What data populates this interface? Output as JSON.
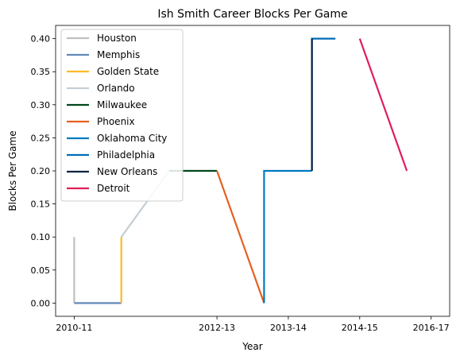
{
  "chart_data": {
    "type": "line",
    "title": "Ish Smith Career Blocks Per Game",
    "xlabel": "Year",
    "ylabel": "Blocks Per Game",
    "x_ticks": [
      {
        "pos": 0,
        "label": "2010-11"
      },
      {
        "pos": 2,
        "label": "2012-13"
      },
      {
        "pos": 3,
        "label": "2013-14"
      },
      {
        "pos": 4,
        "label": "2014-15"
      },
      {
        "pos": 5,
        "label": "2016-17"
      }
    ],
    "xlim": [
      -0.26,
      5.26
    ],
    "ylim": [
      -0.02,
      0.42
    ],
    "y_ticks": [
      "0.00",
      "0.05",
      "0.10",
      "0.15",
      "0.20",
      "0.25",
      "0.30",
      "0.35",
      "0.40"
    ],
    "y_tick_values": [
      0,
      0.05,
      0.1,
      0.15,
      0.2,
      0.25,
      0.3,
      0.35,
      0.4
    ],
    "grid": false,
    "legend_position": "upper-left",
    "series": [
      {
        "name": "Houston",
        "color": "#bfbfbf",
        "points": [
          [
            0,
            0.1
          ],
          [
            0,
            0.0
          ]
        ]
      },
      {
        "name": "Memphis",
        "color": "#6189b9",
        "points": [
          [
            0,
            0.0
          ],
          [
            0.66,
            0.0
          ]
        ]
      },
      {
        "name": "Golden State",
        "color": "#fdb927",
        "points": [
          [
            0.66,
            0.0
          ],
          [
            0.66,
            0.1
          ]
        ]
      },
      {
        "name": "Orlando",
        "color": "#c4ced4",
        "points": [
          [
            0.66,
            0.1
          ],
          [
            1.33,
            0.2
          ]
        ]
      },
      {
        "name": "Milwaukee",
        "color": "#00471b",
        "points": [
          [
            1.33,
            0.2
          ],
          [
            2.0,
            0.2
          ]
        ]
      },
      {
        "name": "Phoenix",
        "color": "#e56020",
        "points": [
          [
            2.0,
            0.2
          ],
          [
            2.66,
            0.0
          ]
        ]
      },
      {
        "name": "Oklahoma City",
        "color": "#007ac1",
        "points": [
          [
            2.66,
            0.0
          ],
          [
            2.66,
            0.2
          ],
          [
            3.33,
            0.2
          ]
        ]
      },
      {
        "name": "Philadelphia",
        "color": "#006bb6",
        "points": [
          [
            3.33,
            0.2
          ],
          [
            3.33,
            0.4
          ],
          [
            3.66,
            0.4
          ]
        ]
      },
      {
        "name": "New Orleans",
        "color": "#0c2340",
        "points": [
          [
            3.33,
            0.2
          ],
          [
            3.33,
            0.4
          ]
        ]
      },
      {
        "name": "Detroit",
        "color": "#e01e5a",
        "points": [
          [
            4.0,
            0.4
          ],
          [
            4.66,
            0.2
          ]
        ]
      }
    ]
  }
}
